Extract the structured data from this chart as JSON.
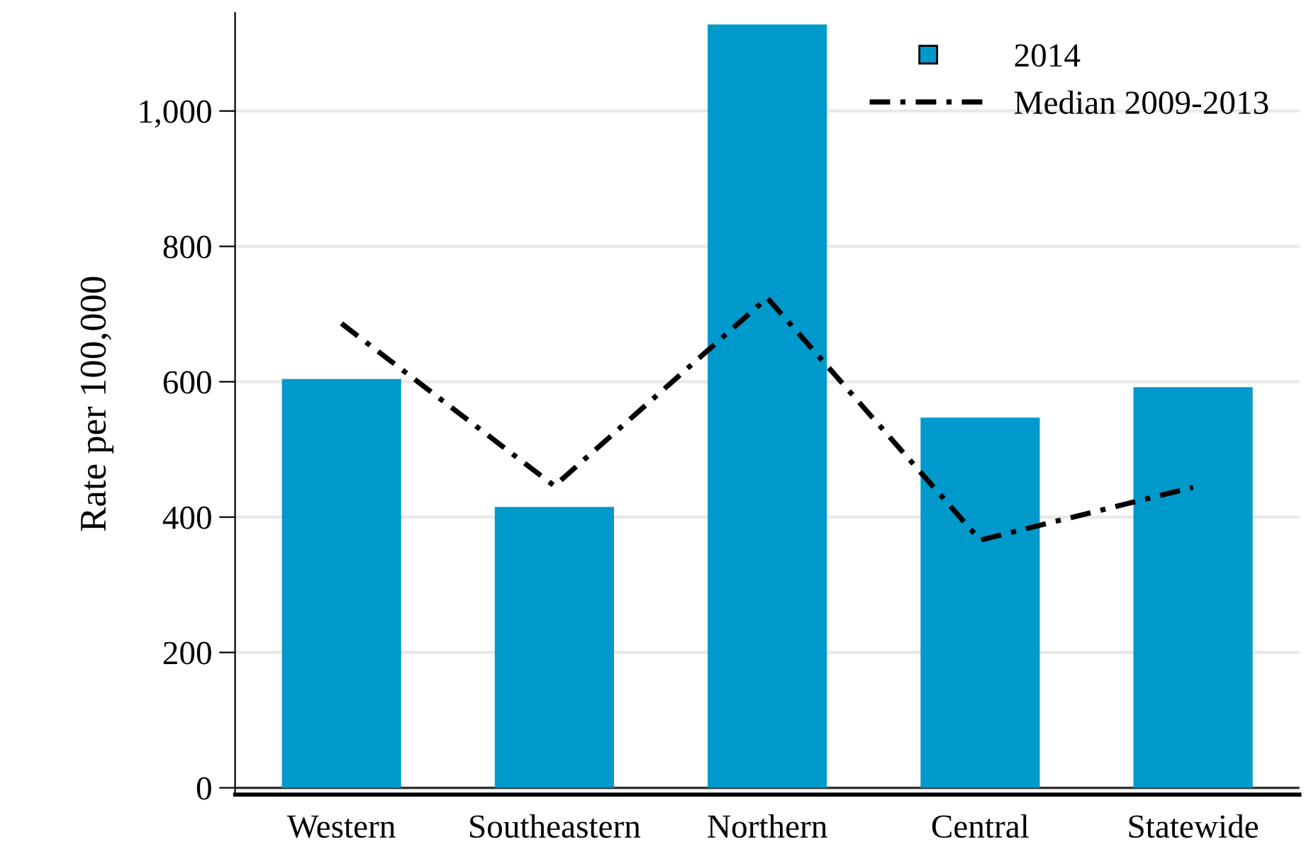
{
  "chart_data": {
    "type": "bar",
    "ylabel": "Rate per 100,000",
    "categories": [
      "Western",
      "Southeastern",
      "Northern",
      "Central",
      "Statewide"
    ],
    "series": [
      {
        "name": "2014",
        "color": "#0099cc",
        "values": [
          604,
          415,
          1128,
          547,
          592
        ]
      },
      {
        "name": "Median 2009-2013",
        "type": "line",
        "color": "#000000",
        "line_style": "dashdot",
        "values": [
          686,
          446,
          724,
          366,
          444
        ]
      }
    ],
    "ylim": [
      -10,
      1145
    ],
    "yticks": [
      0,
      200,
      400,
      600,
      800,
      {
        "value": 1000,
        "label": "1,000"
      }
    ],
    "grid": "y",
    "legend": "top right"
  }
}
